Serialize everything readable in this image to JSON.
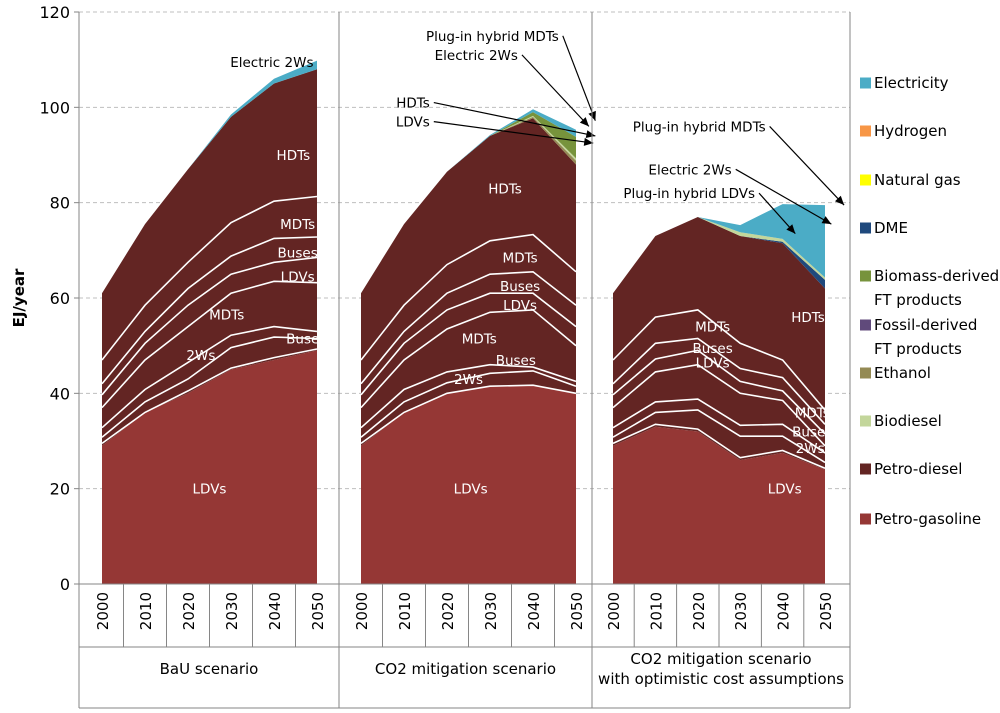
{
  "chart_data": {
    "type": "area",
    "stacked": true,
    "ylabel": "EJ/year",
    "ylim": [
      0,
      120
    ],
    "yticks": [
      0,
      20,
      40,
      60,
      80,
      100,
      120
    ],
    "grid": true,
    "legend_position": "right",
    "years": [
      "2000",
      "2010",
      "2020",
      "2030",
      "2040",
      "2050"
    ],
    "colors": {
      "Electricity": "#4bacc6",
      "Hydrogen": "#f79646",
      "Natural gas": "#ffff00",
      "DME": "#1f497d",
      "Biomass-derived FT products": "#77933c",
      "Fossil-derived FT products": "#604a7b",
      "Ethanol": "#948a54",
      "Biodiesel": "#c3d69b",
      "Petro-diesel": "#632523",
      "Petro-gasoline": "#953735"
    },
    "legend": [
      "Electricity",
      "Hydrogen",
      "Natural gas",
      "DME",
      "Biomass-derived FT products",
      "Fossil-derived FT products",
      "Ethanol",
      "Biodiesel",
      "Petro-diesel",
      "Petro-gasoline"
    ],
    "legend_display": [
      [
        "Electricity"
      ],
      [
        "Hydrogen"
      ],
      [
        "Natural gas"
      ],
      [
        "DME"
      ],
      [
        "Biomass-derived",
        "FT products"
      ],
      [
        "Fossil-derived",
        "FT products"
      ],
      [
        "Ethanol"
      ],
      [
        "Biodiesel"
      ],
      [
        "Petro-diesel"
      ],
      [
        "Petro-gasoline"
      ]
    ],
    "panels": [
      {
        "label": [
          "BaU scenario"
        ],
        "series": [
          {
            "name": "Petro-gasoline",
            "values": [
              29,
              36,
              40,
              45,
              47,
              49
            ]
          },
          {
            "name": "Petro-diesel",
            "values": [
              32,
              39.5,
              47,
              53,
              58,
              59
            ]
          },
          {
            "name": "Electricity",
            "values": [
              0,
              0,
              0,
              0.5,
              1,
              1.8
            ]
          }
        ],
        "lines": [
          [
            29.5,
            36,
            40.5,
            45.3,
            47.5,
            49.3
          ],
          [
            30.8,
            38.2,
            43,
            49.6,
            51.8,
            51.5
          ],
          [
            32.8,
            40.8,
            46.5,
            52.2,
            54,
            53
          ],
          [
            37,
            47,
            54,
            61,
            63.5,
            63.2
          ],
          [
            39.7,
            50.5,
            58.5,
            65,
            67.5,
            68.5
          ],
          [
            42,
            53,
            62,
            68.8,
            72.5,
            72.8
          ],
          [
            47,
            58.5,
            67.5,
            75.8,
            80.3,
            81.3
          ]
        ],
        "labels": [
          {
            "text": "LDVs",
            "col": 2.5,
            "y": 20
          },
          {
            "text": "2Ws",
            "col": 2.3,
            "y": 48
          },
          {
            "text": "Buses",
            "col": 4.75,
            "y": 51.5
          },
          {
            "text": "MDTs",
            "col": 2.9,
            "y": 56.5
          },
          {
            "text": "LDVs",
            "col": 4.55,
            "y": 64.5
          },
          {
            "text": "Buses",
            "col": 4.55,
            "y": 69.5
          },
          {
            "text": "MDTs",
            "col": 4.55,
            "y": 75.5
          },
          {
            "text": "HDTs",
            "col": 4.45,
            "y": 90
          }
        ],
        "callouts": [
          {
            "text": "Electric 2Ws",
            "col": 3.95,
            "y": 109.5,
            "anchor": "middle"
          }
        ]
      },
      {
        "label": [
          "CO2 mitigation scenario"
        ],
        "series": [
          {
            "name": "Petro-gasoline",
            "values": [
              29,
              36,
              40,
              41.5,
              41.7,
              40
            ]
          },
          {
            "name": "Petro-diesel",
            "values": [
              32,
              39.5,
              46.5,
              52.5,
              56,
              48
            ]
          },
          {
            "name": "Ethanol",
            "values": [
              0,
              0,
              0,
              0,
              0.3,
              0.8
            ]
          },
          {
            "name": "Biodiesel",
            "values": [
              0,
              0,
              0,
              0,
              0.2,
              0.5
            ]
          },
          {
            "name": "Biomass-derived FT products",
            "values": [
              0,
              0,
              0,
              0,
              0.8,
              4.5
            ]
          },
          {
            "name": "Electricity",
            "values": [
              0,
              0,
              0,
              0.2,
              0.6,
              1.5
            ]
          }
        ],
        "lines": [
          [
            29.5,
            36,
            40,
            41.5,
            41.7,
            40
          ],
          [
            30.8,
            38.2,
            42.2,
            44.2,
            44.7,
            41.5
          ],
          [
            32.8,
            40.8,
            44.5,
            46,
            45.5,
            42.5
          ],
          [
            37,
            47,
            53.5,
            57,
            57.5,
            50
          ],
          [
            39.7,
            50.5,
            57.5,
            61,
            61,
            54
          ],
          [
            42,
            53,
            61,
            65,
            65.5,
            58.5
          ],
          [
            47,
            58.5,
            67,
            72,
            73.3,
            65.5
          ]
        ],
        "labels": [
          {
            "text": "LDVs",
            "col": 2.55,
            "y": 20
          },
          {
            "text": "2Ws",
            "col": 2.5,
            "y": 43
          },
          {
            "text": "Buses",
            "col": 3.6,
            "y": 47
          },
          {
            "text": "MDTs",
            "col": 2.75,
            "y": 51.5
          },
          {
            "text": "LDVs",
            "col": 3.7,
            "y": 58.5
          },
          {
            "text": "Buses",
            "col": 3.7,
            "y": 62.5
          },
          {
            "text": "MDTs",
            "col": 3.7,
            "y": 68.5
          },
          {
            "text": "HDTs",
            "col": 3.35,
            "y": 83
          }
        ],
        "callouts": [
          {
            "text": "Plug-in hybrid  MDTs",
            "col": 4.6,
            "y": 115,
            "anchor": "end",
            "tip": [
              5.45,
              97.2
            ]
          },
          {
            "text": "Electric 2Ws",
            "col": 3.65,
            "y": 111,
            "anchor": "end",
            "tip": [
              5.3,
              96
            ]
          },
          {
            "text": "HDTs",
            "col": 1.6,
            "y": 101,
            "anchor": "end",
            "tip": [
              5.45,
              94
            ]
          },
          {
            "text": "LDVs",
            "col": 1.6,
            "y": 97,
            "anchor": "end",
            "tip": [
              5.4,
              92.5
            ]
          }
        ]
      },
      {
        "label": [
          "CO2 mitigation scenario",
          "with optimistic cost assumptions"
        ],
        "series": [
          {
            "name": "Petro-gasoline",
            "values": [
              29,
              33,
              32,
              26,
              27.5,
              24
            ]
          },
          {
            "name": "Petro-diesel",
            "values": [
              32,
              40,
              45,
              47,
              44,
              38
            ]
          },
          {
            "name": "DME",
            "values": [
              0,
              0,
              0,
              0,
              0.3,
              1.8
            ]
          },
          {
            "name": "Biodiesel",
            "values": [
              0,
              0,
              0,
              0.8,
              0.6,
              0.5
            ]
          },
          {
            "name": "Electricity",
            "values": [
              0,
              0,
              0,
              1.5,
              7.3,
              15.2
            ]
          }
        ],
        "lines": [
          [
            29.5,
            33.5,
            32.5,
            26.5,
            28,
            24.3
          ],
          [
            30.8,
            36,
            36.5,
            31,
            31,
            25.5
          ],
          [
            32.8,
            38.2,
            38.8,
            33.3,
            33.5,
            27.5
          ],
          [
            37,
            44.5,
            46,
            40,
            38.5,
            29
          ],
          [
            39.7,
            47.2,
            49,
            42.5,
            40.5,
            31.5
          ],
          [
            42,
            50.5,
            51.5,
            45.2,
            43.3,
            33.5
          ],
          [
            47,
            56,
            57.5,
            50.5,
            47,
            36.5
          ]
        ],
        "labels": [
          {
            "text": "LDVs",
            "col": 4.05,
            "y": 20
          },
          {
            "text": "2Ws",
            "col": 4.65,
            "y": 28.5
          },
          {
            "text": "Buses",
            "col": 4.7,
            "y": 32
          },
          {
            "text": "MDTs",
            "col": 4.7,
            "y": 36
          },
          {
            "text": "LDVs",
            "col": 2.35,
            "y": 46.5
          },
          {
            "text": "Buses",
            "col": 2.35,
            "y": 49.5
          },
          {
            "text": "MDTs",
            "col": 2.35,
            "y": 54
          },
          {
            "text": "HDTs",
            "col": 4.6,
            "y": 56
          }
        ],
        "callouts": [
          {
            "text": "Plug-in hybrid  MDTs",
            "col": 3.6,
            "y": 96,
            "anchor": "end",
            "tip": [
              5.45,
              79.5
            ]
          },
          {
            "text": "Electric 2Ws",
            "col": 2.8,
            "y": 87,
            "anchor": "end",
            "tip": [
              5.15,
              75.5
            ]
          },
          {
            "text": "Plug-in hybrid  LDVs",
            "col": 3.35,
            "y": 82,
            "anchor": "end",
            "tip": [
              4.3,
              73.5
            ]
          }
        ]
      }
    ]
  }
}
